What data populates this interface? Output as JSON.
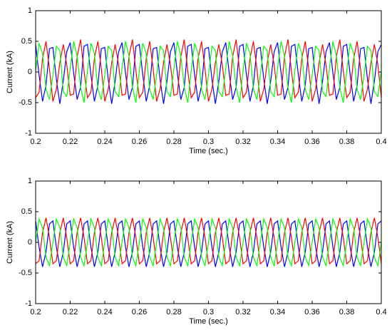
{
  "chart_data": [
    {
      "type": "line",
      "xlabel": "Time (sec.)",
      "ylabel": "Current (kA)",
      "xlim": [
        0.2,
        0.4
      ],
      "ylim": [
        -1,
        1
      ],
      "xticks": [
        0.2,
        0.22,
        0.24,
        0.26,
        0.28,
        0.3,
        0.32,
        0.34,
        0.36,
        0.38,
        0.4
      ],
      "yticks": [
        -1,
        -0.5,
        0,
        0.5,
        1
      ],
      "x": [
        0.2,
        0.202,
        0.204,
        0.206,
        0.208,
        0.21,
        0.212,
        0.214,
        0.216,
        0.218,
        0.22,
        0.222,
        0.224,
        0.226,
        0.228,
        0.23,
        0.232,
        0.234,
        0.236,
        0.238,
        0.24,
        0.242,
        0.244,
        0.246,
        0.248,
        0.25,
        0.252,
        0.254,
        0.256,
        0.258,
        0.26,
        0.262,
        0.264,
        0.266,
        0.268,
        0.27,
        0.272,
        0.274,
        0.276,
        0.278,
        0.28,
        0.282,
        0.284,
        0.286,
        0.288,
        0.29,
        0.292,
        0.294,
        0.296,
        0.298,
        0.3,
        0.302,
        0.304,
        0.306,
        0.308,
        0.31,
        0.312,
        0.314,
        0.316,
        0.318,
        0.32,
        0.322,
        0.324,
        0.326,
        0.328,
        0.33,
        0.332,
        0.334,
        0.336,
        0.338,
        0.34,
        0.342,
        0.344,
        0.346,
        0.348,
        0.35,
        0.352,
        0.354,
        0.356,
        0.358,
        0.36,
        0.362,
        0.364,
        0.366,
        0.368,
        0.37,
        0.372,
        0.374,
        0.376,
        0.378,
        0.38,
        0.382,
        0.384,
        0.386,
        0.388,
        0.39,
        0.392,
        0.394,
        0.396,
        0.398,
        0.4
      ],
      "series": [
        {
          "color": "#0000ff",
          "values": [
            0.45,
            -0.05,
            -0.48,
            -0.22,
            0.38,
            0.4,
            -0.12,
            -0.52,
            -0.15,
            0.33,
            0.48,
            -0.02,
            -0.45,
            -0.25,
            0.42,
            0.45,
            -0.05,
            -0.48,
            -0.22,
            0.38,
            0.4,
            -0.12,
            -0.52,
            -0.15,
            0.33,
            0.48,
            -0.02,
            -0.45,
            -0.25,
            0.42,
            0.45,
            -0.05,
            -0.48,
            -0.22,
            0.38,
            0.4,
            -0.12,
            -0.52,
            -0.15,
            0.33,
            0.48,
            -0.02,
            -0.45,
            -0.25,
            0.42,
            0.45,
            -0.05,
            -0.48,
            -0.22,
            0.38,
            0.4,
            -0.12,
            -0.52,
            -0.15,
            0.33,
            0.48,
            -0.02,
            -0.45,
            -0.25,
            0.42,
            0.45,
            -0.05,
            -0.48,
            -0.22,
            0.38,
            0.4,
            -0.12,
            -0.52,
            -0.15,
            0.33,
            0.48,
            -0.02,
            -0.45,
            -0.25,
            0.42,
            0.45,
            -0.05,
            -0.48,
            -0.22,
            0.38,
            0.4,
            -0.12,
            -0.52,
            -0.15,
            0.33,
            0.48,
            -0.02,
            -0.45,
            -0.25,
            0.42,
            0.45,
            -0.05,
            -0.48,
            -0.22,
            0.38,
            0.4,
            -0.12,
            -0.52,
            -0.15,
            0.33,
            0.45
          ]
        },
        {
          "color": "#ff0000",
          "values": [
            -0.42,
            -0.33,
            0.22,
            0.5,
            0.05,
            -0.48,
            -0.28,
            0.15,
            0.45,
            0.12,
            -0.38,
            -0.36,
            0.25,
            0.53,
            0.02,
            -0.42,
            -0.33,
            0.22,
            0.5,
            0.05,
            -0.48,
            -0.28,
            0.15,
            0.45,
            0.12,
            -0.38,
            -0.36,
            0.25,
            0.53,
            0.02,
            -0.42,
            -0.33,
            0.22,
            0.5,
            0.05,
            -0.48,
            -0.28,
            0.15,
            0.45,
            0.12,
            -0.38,
            -0.36,
            0.25,
            0.53,
            0.02,
            -0.42,
            -0.33,
            0.22,
            0.5,
            0.05,
            -0.48,
            -0.28,
            0.15,
            0.45,
            0.12,
            -0.38,
            -0.36,
            0.25,
            0.53,
            0.02,
            -0.42,
            -0.33,
            0.22,
            0.5,
            0.05,
            -0.48,
            -0.28,
            0.15,
            0.45,
            0.12,
            -0.38,
            -0.36,
            0.25,
            0.53,
            0.02,
            -0.42,
            -0.33,
            0.22,
            0.5,
            0.05,
            -0.48,
            -0.28,
            0.15,
            0.45,
            0.12,
            -0.38,
            -0.36,
            0.25,
            0.53,
            0.02,
            -0.42,
            -0.33,
            0.22,
            0.5,
            0.05,
            -0.48,
            -0.28,
            0.15,
            0.45,
            0.12,
            -0.42
          ]
        },
        {
          "color": "#00ff00",
          "values": [
            0.02,
            0.47,
            0.3,
            -0.28,
            -0.45,
            -0.05,
            0.42,
            0.35,
            -0.32,
            -0.4,
            0.06,
            0.5,
            0.26,
            -0.25,
            -0.5,
            0.02,
            0.47,
            0.3,
            -0.28,
            -0.45,
            -0.05,
            0.42,
            0.35,
            -0.32,
            -0.4,
            0.06,
            0.5,
            0.26,
            -0.25,
            -0.5,
            0.02,
            0.47,
            0.3,
            -0.28,
            -0.45,
            -0.05,
            0.42,
            0.35,
            -0.32,
            -0.4,
            0.06,
            0.5,
            0.26,
            -0.25,
            -0.5,
            0.02,
            0.47,
            0.3,
            -0.28,
            -0.45,
            -0.05,
            0.42,
            0.35,
            -0.32,
            -0.4,
            0.06,
            0.5,
            0.26,
            -0.25,
            -0.5,
            0.02,
            0.47,
            0.3,
            -0.28,
            -0.45,
            -0.05,
            0.42,
            0.35,
            -0.32,
            -0.4,
            0.06,
            0.5,
            0.26,
            -0.25,
            -0.5,
            0.02,
            0.47,
            0.3,
            -0.28,
            -0.45,
            -0.05,
            0.42,
            0.35,
            -0.32,
            -0.4,
            0.06,
            0.5,
            0.26,
            -0.25,
            -0.5,
            0.02,
            0.47,
            0.3,
            -0.28,
            -0.45,
            -0.05,
            0.42,
            0.35,
            -0.32,
            -0.4,
            0.02
          ]
        }
      ]
    },
    {
      "type": "line",
      "xlabel": "Time (sec.)",
      "ylabel": "Current (kA)",
      "xlim": [
        0.2,
        0.4
      ],
      "ylim": [
        -1,
        1
      ],
      "xticks": [
        0.2,
        0.22,
        0.24,
        0.26,
        0.28,
        0.3,
        0.32,
        0.34,
        0.36,
        0.38,
        0.4
      ],
      "yticks": [
        -1,
        -0.5,
        0,
        0.5,
        1
      ],
      "x": [
        0.2,
        0.202,
        0.204,
        0.206,
        0.208,
        0.21,
        0.212,
        0.214,
        0.216,
        0.218,
        0.22,
        0.222,
        0.224,
        0.226,
        0.228,
        0.23,
        0.232,
        0.234,
        0.236,
        0.238,
        0.24,
        0.242,
        0.244,
        0.246,
        0.248,
        0.25,
        0.252,
        0.254,
        0.256,
        0.258,
        0.26,
        0.262,
        0.264,
        0.266,
        0.268,
        0.27,
        0.272,
        0.274,
        0.276,
        0.278,
        0.28,
        0.282,
        0.284,
        0.286,
        0.288,
        0.29,
        0.292,
        0.294,
        0.296,
        0.298,
        0.3,
        0.302,
        0.304,
        0.306,
        0.308,
        0.31,
        0.312,
        0.314,
        0.316,
        0.318,
        0.32,
        0.322,
        0.324,
        0.326,
        0.328,
        0.33,
        0.332,
        0.334,
        0.336,
        0.338,
        0.34,
        0.342,
        0.344,
        0.346,
        0.348,
        0.35,
        0.352,
        0.354,
        0.356,
        0.358,
        0.36,
        0.362,
        0.364,
        0.366,
        0.368,
        0.37,
        0.372,
        0.374,
        0.376,
        0.378,
        0.38,
        0.382,
        0.384,
        0.386,
        0.388,
        0.39,
        0.392,
        0.394,
        0.396,
        0.398,
        0.4
      ],
      "series": [
        {
          "color": "#0000ff",
          "values": [
            0.35,
            -0.08,
            -0.4,
            -0.16,
            0.3,
            0.35,
            -0.08,
            -0.4,
            -0.16,
            0.3,
            0.35,
            -0.08,
            -0.4,
            -0.16,
            0.3,
            0.35,
            -0.08,
            -0.4,
            -0.16,
            0.3,
            0.35,
            -0.08,
            -0.4,
            -0.16,
            0.3,
            0.35,
            -0.08,
            -0.4,
            -0.16,
            0.3,
            0.35,
            -0.08,
            -0.4,
            -0.16,
            0.3,
            0.35,
            -0.08,
            -0.4,
            -0.16,
            0.3,
            0.35,
            -0.08,
            -0.4,
            -0.16,
            0.3,
            0.35,
            -0.08,
            -0.4,
            -0.16,
            0.3,
            0.35,
            -0.08,
            -0.4,
            -0.16,
            0.3,
            0.35,
            -0.08,
            -0.4,
            -0.16,
            0.3,
            0.35,
            -0.08,
            -0.4,
            -0.16,
            0.3,
            0.35,
            -0.08,
            -0.4,
            -0.16,
            0.3,
            0.35,
            -0.08,
            -0.4,
            -0.16,
            0.3,
            0.35,
            -0.08,
            -0.4,
            -0.16,
            0.3,
            0.35,
            -0.08,
            -0.4,
            -0.16,
            0.3,
            0.35,
            -0.08,
            -0.4,
            -0.16,
            0.3,
            0.35,
            -0.08,
            -0.4,
            -0.16,
            0.3,
            0.35,
            -0.08,
            -0.4,
            -0.16,
            0.3,
            0.35
          ]
        },
        {
          "color": "#ff0000",
          "values": [
            -0.35,
            -0.3,
            0.16,
            0.4,
            0.08,
            -0.35,
            -0.3,
            0.16,
            0.4,
            0.08,
            -0.35,
            -0.3,
            0.16,
            0.4,
            0.08,
            -0.35,
            -0.3,
            0.16,
            0.4,
            0.08,
            -0.35,
            -0.3,
            0.16,
            0.4,
            0.08,
            -0.35,
            -0.3,
            0.16,
            0.4,
            0.08,
            -0.35,
            -0.3,
            0.16,
            0.4,
            0.08,
            -0.35,
            -0.3,
            0.16,
            0.4,
            0.08,
            -0.35,
            -0.3,
            0.16,
            0.4,
            0.08,
            -0.35,
            -0.3,
            0.16,
            0.4,
            0.08,
            -0.35,
            -0.3,
            0.16,
            0.4,
            0.08,
            -0.35,
            -0.3,
            0.16,
            0.4,
            0.08,
            -0.35,
            -0.3,
            0.16,
            0.4,
            0.08,
            -0.35,
            -0.3,
            0.16,
            0.4,
            0.08,
            -0.35,
            -0.3,
            0.16,
            0.4,
            0.08,
            -0.35,
            -0.3,
            0.16,
            0.4,
            0.08,
            -0.35,
            -0.3,
            0.16,
            0.4,
            0.08,
            -0.35,
            -0.3,
            0.16,
            0.4,
            0.08,
            -0.35,
            -0.3,
            0.16,
            0.4,
            0.08,
            -0.35,
            -0.3,
            0.16,
            0.4,
            0.08,
            -0.35
          ]
        },
        {
          "color": "#00ff00",
          "values": [
            0,
            0.38,
            0.24,
            -0.24,
            -0.38,
            0,
            0.38,
            0.24,
            -0.24,
            -0.38,
            0,
            0.38,
            0.24,
            -0.24,
            -0.38,
            0,
            0.38,
            0.24,
            -0.24,
            -0.38,
            0,
            0.38,
            0.24,
            -0.24,
            -0.38,
            0,
            0.38,
            0.24,
            -0.24,
            -0.38,
            0,
            0.38,
            0.24,
            -0.24,
            -0.38,
            0,
            0.38,
            0.24,
            -0.24,
            -0.38,
            0,
            0.38,
            0.24,
            -0.24,
            -0.38,
            0,
            0.38,
            0.24,
            -0.24,
            -0.38,
            0,
            0.38,
            0.24,
            -0.24,
            -0.38,
            0,
            0.38,
            0.24,
            -0.24,
            -0.38,
            0,
            0.38,
            0.24,
            -0.24,
            -0.38,
            0,
            0.38,
            0.24,
            -0.24,
            -0.38,
            0,
            0.38,
            0.24,
            -0.24,
            -0.38,
            0,
            0.38,
            0.24,
            -0.24,
            -0.38,
            0,
            0.38,
            0.24,
            -0.24,
            -0.38,
            0,
            0.38,
            0.24,
            -0.24,
            -0.38,
            0,
            0.38,
            0.24,
            -0.24,
            -0.38,
            0,
            0.38,
            0.24,
            -0.24,
            -0.38,
            0
          ]
        }
      ]
    }
  ]
}
